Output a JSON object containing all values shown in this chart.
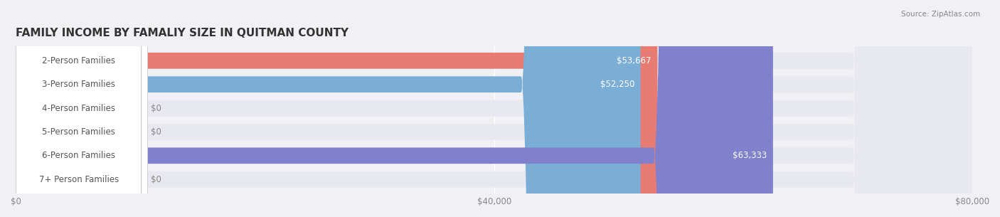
{
  "title": "FAMILY INCOME BY FAMALIY SIZE IN QUITMAN COUNTY",
  "source": "Source: ZipAtlas.com",
  "categories": [
    "2-Person Families",
    "3-Person Families",
    "4-Person Families",
    "5-Person Families",
    "6-Person Families",
    "7+ Person Families"
  ],
  "values": [
    53667,
    52250,
    0,
    0,
    63333,
    0
  ],
  "bar_colors": [
    "#e87c72",
    "#7aaed6",
    "#b89ac8",
    "#6dcbbf",
    "#8080cc",
    "#f4a0b0"
  ],
  "label_colors": [
    "#e87c72",
    "#7aaed6",
    "#b89ac8",
    "#6dcbbf",
    "#8080cc",
    "#f4a0b0"
  ],
  "xlim": [
    0,
    80000
  ],
  "xticks": [
    0,
    40000,
    80000
  ],
  "xtick_labels": [
    "$0",
    "$40,000",
    "$80,000"
  ],
  "value_labels": [
    "$53,667",
    "$52,250",
    "$0",
    "$0",
    "$63,333",
    "$0"
  ],
  "bg_color": "#f0f0f5",
  "bar_bg_color": "#e8e8f0",
  "title_fontsize": 11,
  "label_fontsize": 8.5,
  "value_fontsize": 8.5
}
